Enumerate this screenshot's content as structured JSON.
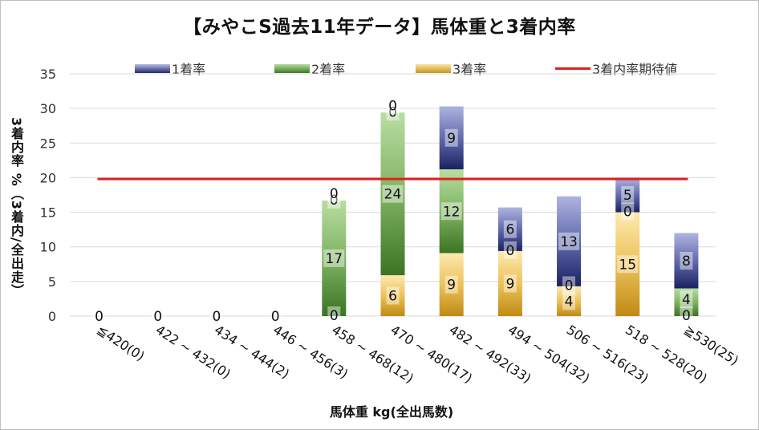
{
  "chart_data": {
    "type": "bar",
    "stacked": true,
    "title": "【みやこS過去11年データ】馬体重と3着内率",
    "xlabel": "馬体重 kg(全出馬数)",
    "ylabel": "3着内率 %（3着内/全出走）",
    "ylim": [
      0,
      35
    ],
    "yticks": [
      "0",
      "5",
      "10",
      "15",
      "20",
      "25",
      "30",
      "35"
    ],
    "grid": true,
    "legend_position": "top",
    "categories": [
      "≦420(0)",
      "422 ~ 432(0)",
      "434 ~ 444(2)",
      "446 ~ 456(3)",
      "458 ~ 468(12)",
      "470 ~ 480(17)",
      "482 ~ 492(33)",
      "494 ~ 504(32)",
      "506 ~ 516(23)",
      "518 ~ 528(20)",
      "≧530(25)"
    ],
    "series": [
      {
        "name": "1着率",
        "color": "#1f2a6b",
        "values": [
          0,
          0,
          0,
          0,
          0,
          0,
          9.1,
          6.3,
          13.0,
          5.0,
          8.0
        ],
        "labels": [
          "0",
          "0",
          "0",
          "0",
          "0",
          "0",
          "9",
          "6",
          "13",
          "5",
          "8"
        ]
      },
      {
        "name": "2着率",
        "color": "#4e8a33",
        "values": [
          0,
          0,
          0,
          0,
          16.7,
          23.5,
          12.1,
          0,
          0,
          0,
          4.0
        ],
        "labels": [
          "",
          "",
          "",
          "",
          "17",
          "24",
          "12",
          "0",
          "0",
          "0",
          "4"
        ]
      },
      {
        "name": "3着率",
        "color": "#c8961f",
        "values": [
          0,
          0,
          0,
          0,
          0,
          5.9,
          9.1,
          9.4,
          4.3,
          15.0,
          0
        ],
        "labels": [
          "",
          "",
          "",
          "",
          "0",
          "6",
          "9",
          "9",
          "4",
          "15",
          "0"
        ]
      }
    ],
    "reference_line": {
      "name": "3着内率期待値",
      "value": 19.8,
      "color": "#e02020"
    },
    "top_labels": [
      "",
      "",
      "",
      "",
      "0",
      "0",
      "",
      "",
      "",
      "",
      ""
    ]
  }
}
